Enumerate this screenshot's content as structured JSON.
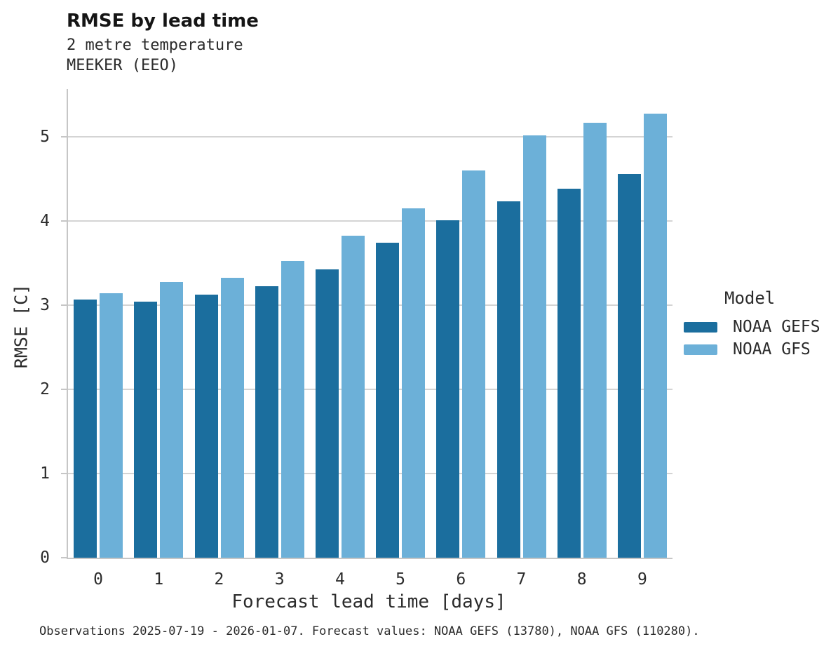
{
  "header": {
    "title": "RMSE by lead time",
    "subtitle_line1": "2 metre temperature",
    "subtitle_line2": "MEEKER (EEO)"
  },
  "footer": {
    "text": "Observations 2025-07-19 - 2026-01-07. Forecast values: NOAA GEFS (13780), NOAA GFS (110280)."
  },
  "colors": {
    "gefs_dark_blue": "#1b6e9e",
    "gfs_light_blue": "#6cb0d8",
    "gridline_gray": "#d4d4d4",
    "spine_gray": "#c6c6c6",
    "text_dark": "#2b2b2b"
  },
  "chart_data": {
    "type": "bar",
    "title": "RMSE by lead time",
    "subtitle": [
      "2 metre temperature",
      "MEEKER (EEO)"
    ],
    "categories": [
      "0",
      "1",
      "2",
      "3",
      "4",
      "5",
      "6",
      "7",
      "8",
      "9"
    ],
    "series": [
      {
        "name": "NOAA GEFS",
        "color": "#1b6e9e",
        "values": [
          3.07,
          3.04,
          3.13,
          3.23,
          3.43,
          3.74,
          4.01,
          4.24,
          4.39,
          4.56
        ]
      },
      {
        "name": "NOAA GFS",
        "color": "#6cb0d8",
        "values": [
          3.14,
          3.28,
          3.33,
          3.53,
          3.83,
          4.15,
          4.6,
          5.02,
          5.17,
          5.28
        ]
      }
    ],
    "xlabel": "Forecast lead time [days]",
    "ylabel": "RMSE [C]",
    "ylim": [
      0,
      5.57
    ],
    "yticks": [
      0,
      1,
      2,
      3,
      4,
      5
    ],
    "grid": "horizontal",
    "legend": {
      "title": "Model",
      "position": "right"
    }
  }
}
